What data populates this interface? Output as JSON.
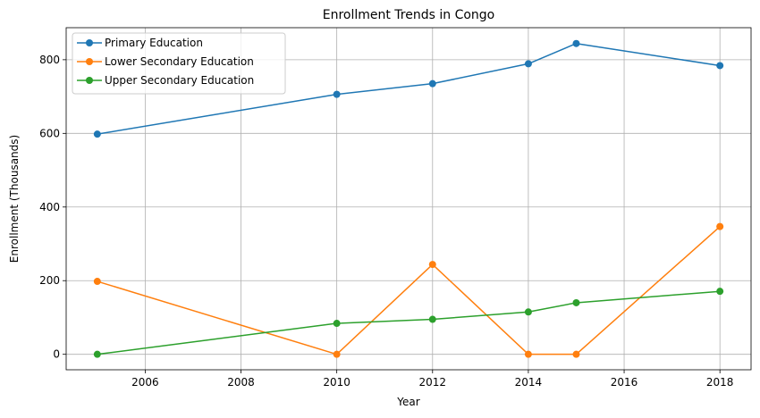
{
  "chart_data": {
    "type": "line",
    "title": "Enrollment Trends in Congo",
    "xlabel": "Year",
    "ylabel": "Enrollment (Thousands)",
    "xlim": [
      2004.35,
      2018.65
    ],
    "ylim": [
      -42,
      887
    ],
    "xticks": [
      2006,
      2008,
      2010,
      2012,
      2014,
      2016,
      2018
    ],
    "yticks": [
      0,
      200,
      400,
      600,
      800
    ],
    "grid": true,
    "legend_position": "top-left",
    "x": [
      2005,
      2010,
      2012,
      2014,
      2015,
      2018
    ],
    "series": [
      {
        "name": "Primary Education",
        "color": "#1f77b4",
        "values": [
          598,
          706,
          735,
          789,
          844,
          784
        ]
      },
      {
        "name": "Lower Secondary Education",
        "color": "#ff7f0e",
        "values": [
          198,
          0,
          244,
          0,
          0,
          347
        ]
      },
      {
        "name": "Upper Secondary Education",
        "color": "#2ca02c",
        "values": [
          0,
          84,
          95,
          115,
          140,
          171
        ]
      }
    ]
  }
}
